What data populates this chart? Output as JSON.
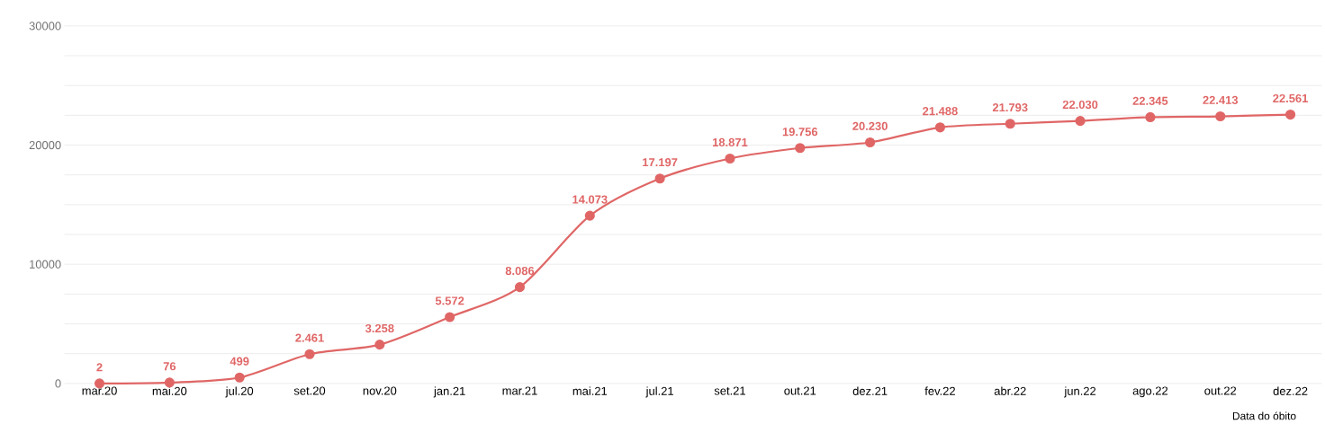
{
  "chart_data": {
    "type": "line",
    "xlabel": "Data do óbito",
    "categories": [
      "mar.20",
      "mai.20",
      "jul.20",
      "set.20",
      "nov.20",
      "jan.21",
      "mar.21",
      "mai.21",
      "jul.21",
      "set.21",
      "out.21",
      "dez.21",
      "fev.22",
      "abr.22",
      "jun.22",
      "ago.22",
      "out.22",
      "dez.22"
    ],
    "series": [
      {
        "color": "#e06666",
        "values": [
          2,
          76,
          499,
          2461,
          3258,
          5572,
          8086,
          14073,
          17197,
          18871,
          19756,
          20230,
          21488,
          21793,
          22030,
          22345,
          22413,
          22561
        ],
        "value_labels": [
          "2",
          "76",
          "499",
          "2.461",
          "3.258",
          "5.572",
          "8.086",
          "14.073",
          "17.197",
          "18.871",
          "19.756",
          "20.230",
          "21.488",
          "21.793",
          "22.030",
          "22.345",
          "22.413",
          "22.561"
        ]
      }
    ],
    "ylim": [
      0,
      30000
    ],
    "yticks": [
      0,
      {
        "value": 2500,
        "label": null
      },
      {
        "value": 5000,
        "label": null
      },
      {
        "value": 7500,
        "label": null
      },
      10000,
      {
        "value": 12500,
        "label": null
      },
      {
        "value": 15000,
        "label": null
      },
      {
        "value": 17500,
        "label": null
      },
      20000,
      {
        "value": 22500,
        "label": null
      },
      {
        "value": 25000,
        "label": null
      },
      {
        "value": 27500,
        "label": null
      },
      30000
    ],
    "grid": "y",
    "marker": "circle",
    "line_style": "solid"
  }
}
